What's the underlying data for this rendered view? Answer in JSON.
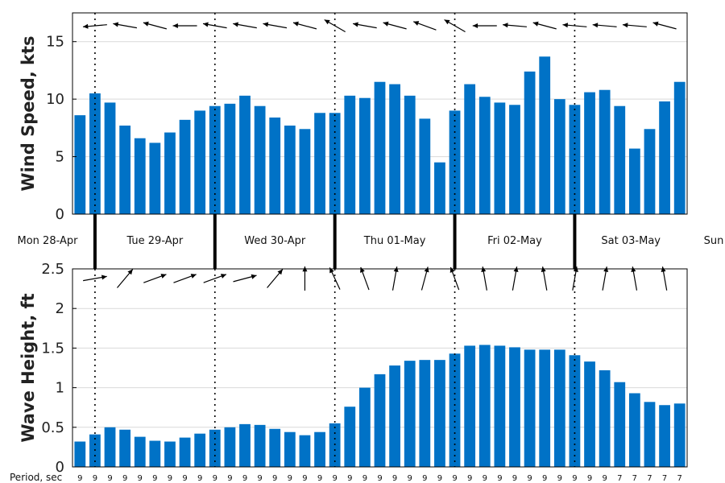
{
  "chart_data": [
    {
      "type": "bar",
      "ylabel": "Wind Speed, kts",
      "ylim": [
        0,
        17.5
      ],
      "yticks": [
        0,
        5,
        10,
        15
      ],
      "bar_color": "#0072C6",
      "grid": true,
      "values": [
        8.6,
        10.5,
        9.7,
        7.7,
        6.6,
        6.2,
        7.1,
        8.2,
        9.0,
        9.4,
        9.6,
        10.3,
        9.4,
        8.4,
        7.7,
        7.4,
        8.8,
        8.8,
        10.3,
        10.1,
        11.5,
        11.3,
        10.3,
        8.3,
        4.5,
        9.0,
        11.3,
        10.2,
        9.7,
        9.5,
        12.4,
        13.7,
        10.0,
        9.5,
        10.6,
        10.8,
        9.4,
        5.7,
        7.4,
        9.8,
        11.5
      ],
      "direction_arrows": [
        "wind-arrow-west",
        "wind-arrow-west",
        "wind-arrow-west",
        "wind-arrow-west",
        "wind-arrow-west"
      ]
    },
    {
      "type": "bar",
      "ylabel": "Wave Height, ft",
      "ylim": [
        0,
        2.5
      ],
      "yticks": [
        0,
        0.5,
        1,
        1.5,
        2,
        2.5
      ],
      "bar_color": "#0072C6",
      "grid": true,
      "values": [
        0.32,
        0.41,
        0.5,
        0.47,
        0.38,
        0.33,
        0.32,
        0.37,
        0.42,
        0.47,
        0.5,
        0.54,
        0.53,
        0.48,
        0.44,
        0.4,
        0.44,
        0.55,
        0.76,
        1.0,
        1.17,
        1.28,
        1.34,
        1.35,
        1.35,
        1.43,
        1.53,
        1.54,
        1.53,
        1.51,
        1.48,
        1.48,
        1.48,
        1.41,
        1.33,
        1.22,
        1.07,
        0.93,
        0.82,
        0.78,
        0.8
      ],
      "direction_arrows": [
        "wave-arrow-northeast",
        "wave-arrow-north"
      ]
    }
  ],
  "days": [
    "Mon 28-Apr",
    "Tue 29-Apr",
    "Wed 30-Apr",
    "Thu 01-May",
    "Fri 02-May",
    "Sat 03-May",
    "Sun"
  ],
  "period_label": "Period, sec",
  "periods": [
    "9",
    "9",
    "9",
    "9",
    "9",
    "9",
    "9",
    "9",
    "9",
    "9",
    "9",
    "9",
    "9",
    "9",
    "9",
    "9",
    "9",
    "9",
    "9",
    "9",
    "9",
    "9",
    "9",
    "9",
    "9",
    "9",
    "9",
    "9",
    "9",
    "9",
    "9",
    "9",
    "9",
    "9",
    "9",
    "9",
    "7",
    "7",
    "7",
    "7",
    "7"
  ],
  "wind_arrow_angles_deg": [
    195,
    175,
    185,
    190,
    195,
    195,
    175,
    180,
    195,
    190,
    180,
    190,
    195,
    190,
    180,
    195,
    200,
    210,
    195,
    190,
    185,
    195,
    195,
    200,
    200,
    210,
    190,
    180,
    190,
    185,
    190,
    195,
    190,
    185,
    180,
    185,
    190,
    185,
    190,
    195,
    190
  ],
  "wave_arrow_angles_deg": [
    -20,
    -10,
    -10,
    -50,
    -20,
    -20,
    -15,
    -20,
    -45,
    -20,
    -20,
    -15,
    -15,
    -50,
    -60,
    -90,
    -100,
    -115,
    -120,
    -110,
    -100,
    -80,
    -80,
    -75,
    -100,
    -110,
    -110,
    -100,
    -80,
    -80,
    -100,
    -100,
    -100,
    -80,
    -80,
    -80,
    -85,
    -100,
    -100,
    -100,
    -90
  ]
}
